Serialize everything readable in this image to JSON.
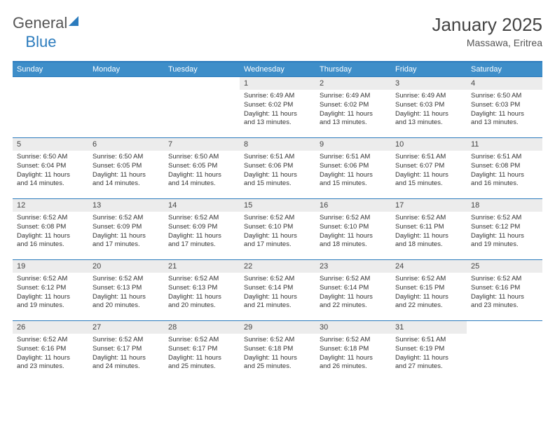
{
  "brand": {
    "part1": "General",
    "part2": "Blue"
  },
  "title": "January 2025",
  "location": "Massawa, Eritrea",
  "styling": {
    "header_bg": "#3e8ec9",
    "header_text": "#ffffff",
    "accent_border": "#2b7bbd",
    "daynum_bg": "#ececec",
    "body_text": "#333333",
    "page_bg": "#ffffff",
    "title_fontsize": 26,
    "location_fontsize": 14,
    "weekday_fontsize": 11,
    "daynum_fontsize": 11,
    "cell_fontsize": 9.5,
    "columns": 7,
    "rows": 5
  },
  "weekdays": [
    "Sunday",
    "Monday",
    "Tuesday",
    "Wednesday",
    "Thursday",
    "Friday",
    "Saturday"
  ],
  "weeks": [
    [
      {
        "n": "",
        "l1": "",
        "l2": "",
        "l3": "",
        "l4": ""
      },
      {
        "n": "",
        "l1": "",
        "l2": "",
        "l3": "",
        "l4": ""
      },
      {
        "n": "",
        "l1": "",
        "l2": "",
        "l3": "",
        "l4": ""
      },
      {
        "n": "1",
        "l1": "Sunrise: 6:49 AM",
        "l2": "Sunset: 6:02 PM",
        "l3": "Daylight: 11 hours",
        "l4": "and 13 minutes."
      },
      {
        "n": "2",
        "l1": "Sunrise: 6:49 AM",
        "l2": "Sunset: 6:02 PM",
        "l3": "Daylight: 11 hours",
        "l4": "and 13 minutes."
      },
      {
        "n": "3",
        "l1": "Sunrise: 6:49 AM",
        "l2": "Sunset: 6:03 PM",
        "l3": "Daylight: 11 hours",
        "l4": "and 13 minutes."
      },
      {
        "n": "4",
        "l1": "Sunrise: 6:50 AM",
        "l2": "Sunset: 6:03 PM",
        "l3": "Daylight: 11 hours",
        "l4": "and 13 minutes."
      }
    ],
    [
      {
        "n": "5",
        "l1": "Sunrise: 6:50 AM",
        "l2": "Sunset: 6:04 PM",
        "l3": "Daylight: 11 hours",
        "l4": "and 14 minutes."
      },
      {
        "n": "6",
        "l1": "Sunrise: 6:50 AM",
        "l2": "Sunset: 6:05 PM",
        "l3": "Daylight: 11 hours",
        "l4": "and 14 minutes."
      },
      {
        "n": "7",
        "l1": "Sunrise: 6:50 AM",
        "l2": "Sunset: 6:05 PM",
        "l3": "Daylight: 11 hours",
        "l4": "and 14 minutes."
      },
      {
        "n": "8",
        "l1": "Sunrise: 6:51 AM",
        "l2": "Sunset: 6:06 PM",
        "l3": "Daylight: 11 hours",
        "l4": "and 15 minutes."
      },
      {
        "n": "9",
        "l1": "Sunrise: 6:51 AM",
        "l2": "Sunset: 6:06 PM",
        "l3": "Daylight: 11 hours",
        "l4": "and 15 minutes."
      },
      {
        "n": "10",
        "l1": "Sunrise: 6:51 AM",
        "l2": "Sunset: 6:07 PM",
        "l3": "Daylight: 11 hours",
        "l4": "and 15 minutes."
      },
      {
        "n": "11",
        "l1": "Sunrise: 6:51 AM",
        "l2": "Sunset: 6:08 PM",
        "l3": "Daylight: 11 hours",
        "l4": "and 16 minutes."
      }
    ],
    [
      {
        "n": "12",
        "l1": "Sunrise: 6:52 AM",
        "l2": "Sunset: 6:08 PM",
        "l3": "Daylight: 11 hours",
        "l4": "and 16 minutes."
      },
      {
        "n": "13",
        "l1": "Sunrise: 6:52 AM",
        "l2": "Sunset: 6:09 PM",
        "l3": "Daylight: 11 hours",
        "l4": "and 17 minutes."
      },
      {
        "n": "14",
        "l1": "Sunrise: 6:52 AM",
        "l2": "Sunset: 6:09 PM",
        "l3": "Daylight: 11 hours",
        "l4": "and 17 minutes."
      },
      {
        "n": "15",
        "l1": "Sunrise: 6:52 AM",
        "l2": "Sunset: 6:10 PM",
        "l3": "Daylight: 11 hours",
        "l4": "and 17 minutes."
      },
      {
        "n": "16",
        "l1": "Sunrise: 6:52 AM",
        "l2": "Sunset: 6:10 PM",
        "l3": "Daylight: 11 hours",
        "l4": "and 18 minutes."
      },
      {
        "n": "17",
        "l1": "Sunrise: 6:52 AM",
        "l2": "Sunset: 6:11 PM",
        "l3": "Daylight: 11 hours",
        "l4": "and 18 minutes."
      },
      {
        "n": "18",
        "l1": "Sunrise: 6:52 AM",
        "l2": "Sunset: 6:12 PM",
        "l3": "Daylight: 11 hours",
        "l4": "and 19 minutes."
      }
    ],
    [
      {
        "n": "19",
        "l1": "Sunrise: 6:52 AM",
        "l2": "Sunset: 6:12 PM",
        "l3": "Daylight: 11 hours",
        "l4": "and 19 minutes."
      },
      {
        "n": "20",
        "l1": "Sunrise: 6:52 AM",
        "l2": "Sunset: 6:13 PM",
        "l3": "Daylight: 11 hours",
        "l4": "and 20 minutes."
      },
      {
        "n": "21",
        "l1": "Sunrise: 6:52 AM",
        "l2": "Sunset: 6:13 PM",
        "l3": "Daylight: 11 hours",
        "l4": "and 20 minutes."
      },
      {
        "n": "22",
        "l1": "Sunrise: 6:52 AM",
        "l2": "Sunset: 6:14 PM",
        "l3": "Daylight: 11 hours",
        "l4": "and 21 minutes."
      },
      {
        "n": "23",
        "l1": "Sunrise: 6:52 AM",
        "l2": "Sunset: 6:14 PM",
        "l3": "Daylight: 11 hours",
        "l4": "and 22 minutes."
      },
      {
        "n": "24",
        "l1": "Sunrise: 6:52 AM",
        "l2": "Sunset: 6:15 PM",
        "l3": "Daylight: 11 hours",
        "l4": "and 22 minutes."
      },
      {
        "n": "25",
        "l1": "Sunrise: 6:52 AM",
        "l2": "Sunset: 6:16 PM",
        "l3": "Daylight: 11 hours",
        "l4": "and 23 minutes."
      }
    ],
    [
      {
        "n": "26",
        "l1": "Sunrise: 6:52 AM",
        "l2": "Sunset: 6:16 PM",
        "l3": "Daylight: 11 hours",
        "l4": "and 23 minutes."
      },
      {
        "n": "27",
        "l1": "Sunrise: 6:52 AM",
        "l2": "Sunset: 6:17 PM",
        "l3": "Daylight: 11 hours",
        "l4": "and 24 minutes."
      },
      {
        "n": "28",
        "l1": "Sunrise: 6:52 AM",
        "l2": "Sunset: 6:17 PM",
        "l3": "Daylight: 11 hours",
        "l4": "and 25 minutes."
      },
      {
        "n": "29",
        "l1": "Sunrise: 6:52 AM",
        "l2": "Sunset: 6:18 PM",
        "l3": "Daylight: 11 hours",
        "l4": "and 25 minutes."
      },
      {
        "n": "30",
        "l1": "Sunrise: 6:52 AM",
        "l2": "Sunset: 6:18 PM",
        "l3": "Daylight: 11 hours",
        "l4": "and 26 minutes."
      },
      {
        "n": "31",
        "l1": "Sunrise: 6:51 AM",
        "l2": "Sunset: 6:19 PM",
        "l3": "Daylight: 11 hours",
        "l4": "and 27 minutes."
      },
      {
        "n": "",
        "l1": "",
        "l2": "",
        "l3": "",
        "l4": ""
      }
    ]
  ]
}
